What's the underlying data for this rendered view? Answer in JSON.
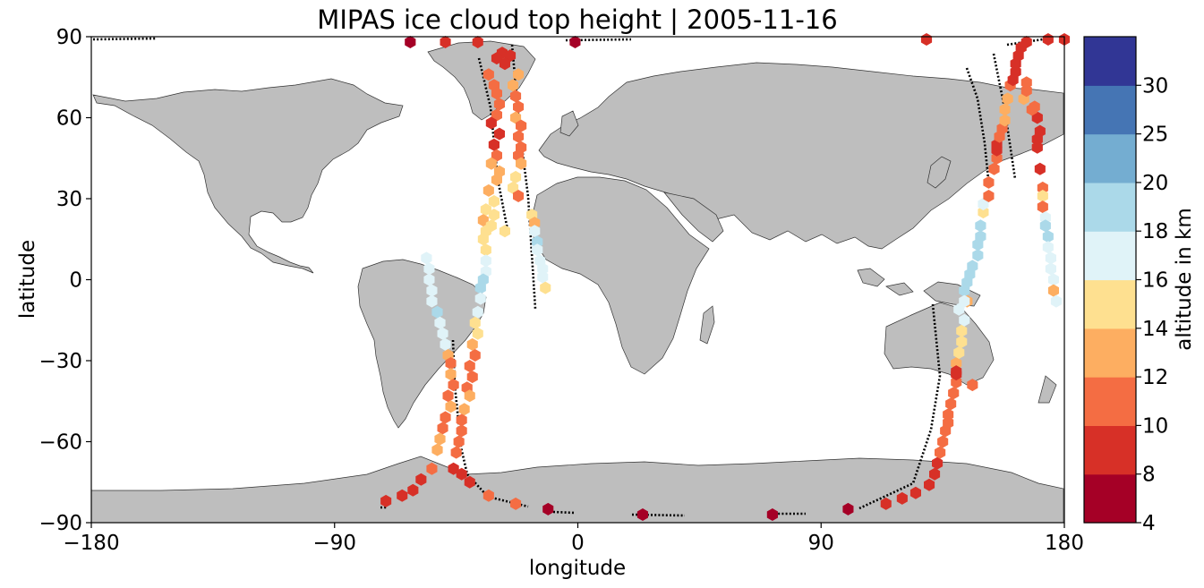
{
  "chart_data": {
    "type": "scatter",
    "title": "MIPAS ice cloud top height | 2005-11-16",
    "xlabel": "longitude",
    "ylabel": "latitude",
    "xlim": [
      -180,
      180
    ],
    "ylim": [
      -90,
      90
    ],
    "xticks": [
      -180,
      -90,
      0,
      90,
      180
    ],
    "yticks": [
      -90,
      -60,
      -30,
      0,
      30,
      60,
      90
    ],
    "xtick_labels": [
      "−180",
      "−90",
      "0",
      "90",
      "180"
    ],
    "ytick_labels": [
      "−90",
      "−60",
      "−30",
      "0",
      "30",
      "60",
      "90"
    ],
    "background_map": "world coastlines, land in grey",
    "land_color": "#bebebe",
    "colorbar": {
      "label": "altitude in km",
      "boundaries": [
        4,
        8,
        10,
        12,
        14,
        16,
        18,
        20,
        25,
        30
      ],
      "tick_labels": [
        "4",
        "8",
        "10",
        "12",
        "14",
        "16",
        "18",
        "20",
        "25",
        "30"
      ],
      "colors": [
        "#a50026",
        "#d73027",
        "#f46d43",
        "#fdae61",
        "#fee090",
        "#e0f3f8",
        "#abd9e9",
        "#74add1",
        "#4575b4",
        "#313695"
      ]
    },
    "series": [
      {
        "marker": "hexagon",
        "points": [
          [
            -28,
            84,
            9
          ],
          [
            -25,
            83,
            8
          ],
          [
            -30,
            82,
            9
          ],
          [
            -27,
            80,
            8
          ],
          [
            -33,
            76,
            11
          ],
          [
            -22,
            76,
            12
          ],
          [
            -31,
            72,
            10
          ],
          [
            -24,
            72,
            13
          ],
          [
            -30,
            69,
            10
          ],
          [
            -23,
            68,
            11
          ],
          [
            -29,
            65,
            10
          ],
          [
            -22,
            64,
            11
          ],
          [
            -30,
            61,
            11
          ],
          [
            -23,
            60,
            12
          ],
          [
            -32,
            58,
            9
          ],
          [
            -21,
            57,
            11
          ],
          [
            -29,
            54,
            9
          ],
          [
            -22,
            53,
            11
          ],
          [
            -31,
            50,
            9
          ],
          [
            -21,
            49,
            10
          ],
          [
            -30,
            46,
            11
          ],
          [
            -22,
            46,
            11
          ],
          [
            -32,
            43,
            13
          ],
          [
            -21,
            43,
            12
          ],
          [
            -29,
            40,
            12
          ],
          [
            -23,
            38,
            14
          ],
          [
            -30,
            37,
            13
          ],
          [
            -24,
            34,
            14
          ],
          [
            -33,
            33,
            13
          ],
          [
            -22,
            31,
            11
          ],
          [
            -31,
            29,
            14
          ],
          [
            -34,
            26,
            14
          ],
          [
            -17,
            24,
            14
          ],
          [
            -31,
            24,
            14
          ],
          [
            -35,
            22,
            13
          ],
          [
            -16,
            21,
            13
          ],
          [
            -32,
            20,
            14
          ],
          [
            -16,
            18,
            17
          ],
          [
            -34,
            18,
            15
          ],
          [
            -27,
            18,
            14
          ],
          [
            -15,
            14,
            18
          ],
          [
            -35,
            15,
            15
          ],
          [
            -15,
            11,
            17
          ],
          [
            -34,
            11,
            15
          ],
          [
            -34,
            7,
            16
          ],
          [
            -14,
            7,
            17
          ],
          [
            -34,
            3,
            17
          ],
          [
            -13,
            4,
            17
          ],
          [
            -35,
            0,
            18
          ],
          [
            -13,
            1,
            17
          ],
          [
            -36,
            -3,
            18
          ],
          [
            -12,
            -3,
            14
          ],
          [
            -36,
            -7,
            16
          ],
          [
            -37,
            -12,
            17
          ],
          [
            -38,
            -16,
            14
          ],
          [
            -37,
            -20,
            14
          ],
          [
            -39,
            -24,
            12
          ],
          [
            -38,
            -28,
            10
          ],
          [
            -40,
            -32,
            11
          ],
          [
            -39,
            -36,
            10
          ],
          [
            -41,
            -40,
            11
          ],
          [
            -40,
            -43,
            12
          ],
          [
            -42,
            -48,
            12
          ],
          [
            -43,
            -52,
            11
          ],
          [
            -43,
            -56,
            11
          ],
          [
            -44,
            -60,
            11
          ],
          [
            -45,
            -64,
            11
          ],
          [
            -46,
            -70,
            9
          ],
          [
            -43,
            -72,
            9
          ],
          [
            -40,
            -75,
            9
          ],
          [
            -33,
            -80,
            11
          ],
          [
            -23,
            -83,
            10
          ],
          [
            -11,
            -85,
            7
          ],
          [
            -54,
            -4,
            17
          ],
          [
            -55,
            0,
            17
          ],
          [
            -55,
            4,
            17
          ],
          [
            -56,
            8,
            17
          ],
          [
            -54,
            -8,
            17
          ],
          [
            -52,
            -12,
            18
          ],
          [
            -51,
            -16,
            17
          ],
          [
            -50,
            -20,
            17
          ],
          [
            -49,
            -24,
            17
          ],
          [
            -48,
            -28,
            12
          ],
          [
            -47,
            -31,
            11
          ],
          [
            -47,
            -35,
            12
          ],
          [
            -46,
            -39,
            11
          ],
          [
            -48,
            -43,
            10
          ],
          [
            -47,
            -47,
            12
          ],
          [
            -49,
            -51,
            11
          ],
          [
            -50,
            -55,
            11
          ],
          [
            -51,
            -59,
            12
          ],
          [
            -52,
            -63,
            12
          ],
          [
            -54,
            -70,
            10
          ],
          [
            -58,
            -74,
            8
          ],
          [
            -61,
            -78,
            8
          ],
          [
            -65,
            -80,
            9
          ],
          [
            -71,
            -82,
            9
          ],
          [
            -62,
            88,
            7
          ],
          [
            -37,
            88,
            9
          ],
          [
            -49,
            88,
            9
          ],
          [
            -1,
            88,
            7
          ],
          [
            24,
            -87,
            7
          ],
          [
            72,
            -87,
            7
          ],
          [
            100,
            -85,
            7
          ],
          [
            114,
            -83,
            8
          ],
          [
            120,
            -81,
            9
          ],
          [
            125,
            -79,
            9
          ],
          [
            130,
            -76,
            9
          ],
          [
            132,
            -72,
            9
          ],
          [
            133,
            -68,
            9
          ],
          [
            134,
            -64,
            10
          ],
          [
            135,
            -60,
            10
          ],
          [
            136,
            -56,
            10
          ],
          [
            137,
            -53,
            11
          ],
          [
            137,
            -50,
            11
          ],
          [
            138,
            -46,
            11
          ],
          [
            139,
            -42,
            11
          ],
          [
            140,
            -38,
            11
          ],
          [
            140,
            -35,
            9
          ],
          [
            140,
            -31,
            12
          ],
          [
            141,
            -27,
            14
          ],
          [
            142,
            -23,
            14
          ],
          [
            142,
            -19,
            15
          ],
          [
            143,
            -15,
            17
          ],
          [
            141,
            -11,
            17
          ],
          [
            144,
            -8,
            13
          ],
          [
            143,
            -4,
            18
          ],
          [
            144,
            -1,
            18
          ],
          [
            145,
            2,
            18
          ],
          [
            146,
            5,
            18
          ],
          [
            143,
            -8,
            17
          ],
          [
            140,
            -34,
            9
          ],
          [
            146,
            -39,
            11
          ],
          [
            148,
            9,
            19
          ],
          [
            148,
            13,
            19
          ],
          [
            149,
            16,
            18
          ],
          [
            149,
            20,
            19
          ],
          [
            150,
            25,
            14
          ],
          [
            150,
            28,
            16
          ],
          [
            152,
            31,
            11
          ],
          [
            152,
            36,
            11
          ],
          [
            154,
            41,
            11
          ],
          [
            155,
            45,
            10
          ],
          [
            155,
            48,
            9
          ],
          [
            155,
            50,
            9
          ],
          [
            156,
            53,
            10
          ],
          [
            157,
            56,
            11
          ],
          [
            158,
            59,
            12
          ],
          [
            158,
            63,
            12
          ],
          [
            159,
            67,
            12
          ],
          [
            160,
            72,
            11
          ],
          [
            161,
            74,
            9
          ],
          [
            162,
            77,
            9
          ],
          [
            162,
            80,
            9
          ],
          [
            163,
            83,
            8
          ],
          [
            164,
            86,
            8
          ],
          [
            166,
            88,
            8
          ],
          [
            171,
            55,
            9
          ],
          [
            170,
            60,
            8
          ],
          [
            169,
            64,
            10
          ],
          [
            165,
            67,
            12
          ],
          [
            166,
            70,
            11
          ],
          [
            166,
            73,
            11
          ],
          [
            168,
            63,
            10
          ],
          [
            170,
            52,
            9
          ],
          [
            170,
            49,
            9
          ],
          [
            171,
            41,
            9
          ],
          [
            172,
            34,
            11
          ],
          [
            172,
            31,
            14
          ],
          [
            172,
            27,
            11
          ],
          [
            173,
            23,
            17
          ],
          [
            173,
            20,
            18
          ],
          [
            174,
            16,
            18
          ],
          [
            174,
            12,
            17
          ],
          [
            175,
            8,
            17
          ],
          [
            175,
            4,
            17
          ],
          [
            176,
            0,
            17
          ],
          [
            176,
            -4,
            12
          ],
          [
            177,
            -8,
            17
          ],
          [
            129,
            89,
            9
          ],
          [
            180,
            89,
            8
          ],
          [
            174,
            89,
            8
          ]
        ]
      }
    ]
  }
}
